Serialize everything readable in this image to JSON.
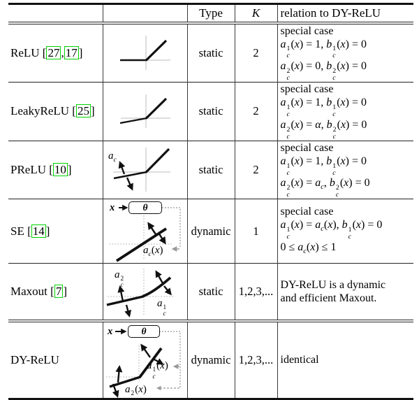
{
  "colors": {
    "cite_box": "#00d300",
    "axis_gray": "#bbbbbb",
    "pointer_gray": "#999999",
    "ink": "#111111"
  },
  "cite_brackets": {
    "open": "[",
    "close": "]",
    "sep": ","
  },
  "header": {
    "type": "Type",
    "k": "K",
    "relation": "relation to DY-ReLU"
  },
  "rows": [
    {
      "name": "ReLU",
      "cites": [
        "27",
        "17"
      ],
      "type": "static",
      "k": "2",
      "relation_lines": [
        "special case",
        "a_c^1(x) = 1, b_c^1(x) = 0",
        "a_c^2(x) = 0, b_c^2(x) = 0"
      ]
    },
    {
      "name": "LeakyReLU",
      "cites": [
        "25"
      ],
      "type": "static",
      "k": "2",
      "relation_lines": [
        "special case",
        "a_c^1(x) = 1, b_c^1(x) = 0",
        "a_c^2(x) = alpha, b_c^2(x) = 0"
      ]
    },
    {
      "name": "PReLU",
      "cites": [
        "10"
      ],
      "type": "static",
      "k": "2",
      "relation_lines": [
        "special case",
        "a_c^1(x) = 1,  b_c^1(x) = 0",
        "a_c^2(x) = a_c,  b_c^2(x) = 0"
      ]
    },
    {
      "name": "SE",
      "cites": [
        "14"
      ],
      "type": "dynamic",
      "k": "1",
      "relation_lines": [
        "special case",
        "a_c^1(x) = a_c(x), b_c^1(x) = 0",
        "0 <= a_c(x) <= 1"
      ]
    },
    {
      "name": "Maxout",
      "cites": [
        "7"
      ],
      "type": "static",
      "k": "1,2,3,...",
      "relation_lines": [
        "DY-ReLU is a dynamic",
        "and efficient Maxout."
      ]
    },
    {
      "name": "DY-ReLU",
      "cites": [],
      "type": "dynamic",
      "k": "1,2,3,...",
      "relation_lines": [
        "identical"
      ]
    }
  ],
  "figures": {
    "prelu": {
      "slope_label": "a_c"
    },
    "se": {
      "input": "x",
      "theta": "θ",
      "slope_label": "a_c(x)"
    },
    "maxout": {
      "upper_label": "a_c^2",
      "lower_label": "a_c^1"
    },
    "dyrelu": {
      "input": "x",
      "theta": "θ",
      "upper_label": "a_c^1(x)",
      "lower_label": "a_c^2(x)"
    }
  }
}
